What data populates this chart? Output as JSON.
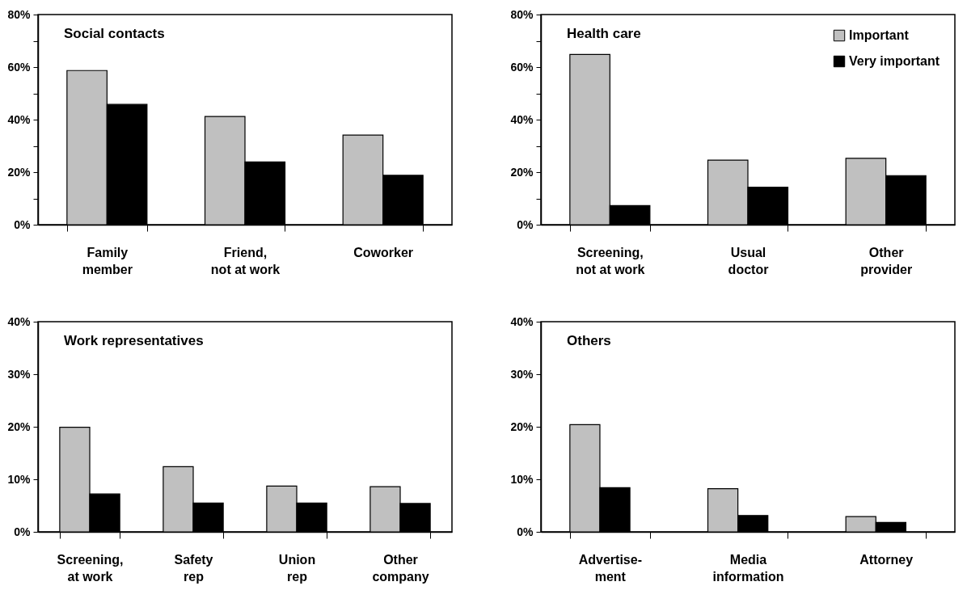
{
  "chart_data": [
    {
      "type": "bar",
      "title": "Social contacts",
      "categories": [
        "Family\nmember",
        "Friend,\nnot at work",
        "Coworker"
      ],
      "ylim": [
        0,
        80
      ],
      "yticks": [
        {
          "value": 0,
          "label": "0%"
        },
        {
          "value": 10,
          "label": null
        },
        {
          "value": 20,
          "label": "20%"
        },
        {
          "value": 30,
          "label": null
        },
        {
          "value": 40,
          "label": "40%"
        },
        {
          "value": 50,
          "label": null
        },
        {
          "value": 60,
          "label": "60%"
        },
        {
          "value": 70,
          "label": null
        },
        {
          "value": 80,
          "label": "80%"
        }
      ],
      "grid": false,
      "series": [
        {
          "color": "#c0c0c0",
          "values": [
            58.7,
            41.2,
            34.1
          ]
        },
        {
          "color": "#000000",
          "values": [
            45.8,
            23.9,
            18.8
          ]
        }
      ]
    },
    {
      "type": "bar",
      "title": "Health care",
      "categories": [
        "Screening,\nnot at work",
        "Usual\ndoctor",
        "Other\nprovider"
      ],
      "ylim": [
        0,
        80
      ],
      "yticks": [
        {
          "value": 0,
          "label": "0%"
        },
        {
          "value": 10,
          "label": null
        },
        {
          "value": 20,
          "label": "20%"
        },
        {
          "value": 30,
          "label": null
        },
        {
          "value": 40,
          "label": "40%"
        },
        {
          "value": 50,
          "label": null
        },
        {
          "value": 60,
          "label": "60%"
        },
        {
          "value": 70,
          "label": null
        },
        {
          "value": 80,
          "label": "80%"
        }
      ],
      "grid": false,
      "legend": "top right",
      "series": [
        {
          "name": "Important",
          "color": "#c0c0c0",
          "values": [
            64.8,
            24.6,
            25.3
          ]
        },
        {
          "name": "Very important",
          "color": "#000000",
          "values": [
            7.3,
            14.3,
            18.7
          ]
        }
      ]
    },
    {
      "type": "bar",
      "title": "Work representatives",
      "categories": [
        "Screening,\nat work",
        "Safety\nrep",
        "Union\nrep",
        "Other\ncompany"
      ],
      "ylim": [
        0,
        40
      ],
      "yticks": [
        {
          "value": 0,
          "label": "0%"
        },
        {
          "value": 10,
          "label": "10%"
        },
        {
          "value": 20,
          "label": "20%"
        },
        {
          "value": 30,
          "label": "30%"
        },
        {
          "value": 40,
          "label": "40%"
        }
      ],
      "grid": false,
      "series": [
        {
          "color": "#c0c0c0",
          "values": [
            19.9,
            12.4,
            8.7,
            8.6
          ]
        },
        {
          "color": "#000000",
          "values": [
            7.2,
            5.5,
            5.5,
            5.4
          ]
        }
      ]
    },
    {
      "type": "bar",
      "title": "Others",
      "categories": [
        "Advertise-\nment",
        "Media\ninformation",
        "Attorney"
      ],
      "ylim": [
        0,
        40
      ],
      "yticks": [
        {
          "value": 0,
          "label": "0%"
        },
        {
          "value": 10,
          "label": "10%"
        },
        {
          "value": 20,
          "label": "20%"
        },
        {
          "value": 30,
          "label": "30%"
        },
        {
          "value": 40,
          "label": "40%"
        }
      ],
      "grid": false,
      "series": [
        {
          "color": "#c0c0c0",
          "values": [
            20.4,
            8.2,
            2.9
          ]
        },
        {
          "color": "#000000",
          "values": [
            8.4,
            3.1,
            1.8
          ]
        }
      ]
    }
  ]
}
